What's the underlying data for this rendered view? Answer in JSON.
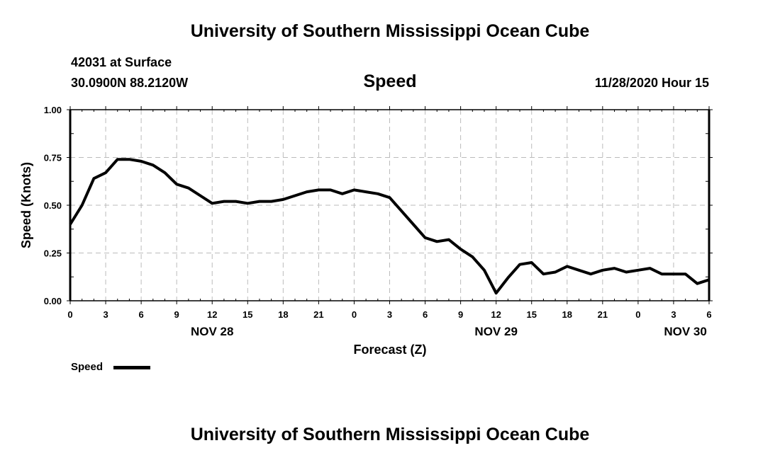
{
  "header": {
    "title": "University of Southern Mississippi Ocean Cube",
    "station": "42031 at Surface",
    "coords": "30.0900N 88.2120W",
    "datetime": "11/28/2020 Hour 15",
    "footer": "University of Southern Mississippi Ocean Cube"
  },
  "chart_data": {
    "type": "line",
    "title": "Speed",
    "xlabel": "Forecast (Z)",
    "ylabel": "Speed (Knots)",
    "ylim": [
      0,
      1
    ],
    "xlim_hours": [
      0,
      54
    ],
    "yticks": [
      "0.00",
      "0.25",
      "0.50",
      "0.75",
      "1.00"
    ],
    "xtick_labels": [
      "0",
      "3",
      "6",
      "9",
      "12",
      "15",
      "18",
      "21",
      "0",
      "3",
      "6",
      "9",
      "12",
      "15",
      "18",
      "21",
      "0",
      "3",
      "6"
    ],
    "date_labels": [
      {
        "label": "NOV 28",
        "hour": 12
      },
      {
        "label": "NOV 29",
        "hour": 36
      },
      {
        "label": "NOV 30",
        "hour": 52
      }
    ],
    "grid": true,
    "legend": "bottom-left",
    "series": [
      {
        "name": "Speed",
        "color": "#000000",
        "x_hours": [
          0,
          1,
          2,
          3,
          4,
          5,
          6,
          7,
          8,
          9,
          10,
          11,
          12,
          13,
          14,
          15,
          16,
          17,
          18,
          19,
          20,
          21,
          22,
          23,
          24,
          25,
          26,
          27,
          28,
          29,
          30,
          31,
          32,
          33,
          34,
          35,
          36,
          37,
          38,
          39,
          40,
          41,
          42,
          43,
          44,
          45,
          46,
          47,
          48,
          49,
          50,
          51,
          52,
          53,
          54
        ],
        "values": [
          0.4,
          0.5,
          0.64,
          0.67,
          0.74,
          0.74,
          0.73,
          0.71,
          0.67,
          0.61,
          0.59,
          0.55,
          0.51,
          0.52,
          0.52,
          0.51,
          0.52,
          0.52,
          0.53,
          0.55,
          0.57,
          0.58,
          0.58,
          0.56,
          0.58,
          0.57,
          0.56,
          0.54,
          0.47,
          0.4,
          0.33,
          0.31,
          0.32,
          0.27,
          0.23,
          0.16,
          0.04,
          0.12,
          0.19,
          0.2,
          0.14,
          0.15,
          0.18,
          0.16,
          0.14,
          0.16,
          0.17,
          0.15,
          0.16,
          0.17,
          0.14,
          0.14,
          0.14,
          0.09,
          0.11
        ]
      }
    ]
  }
}
